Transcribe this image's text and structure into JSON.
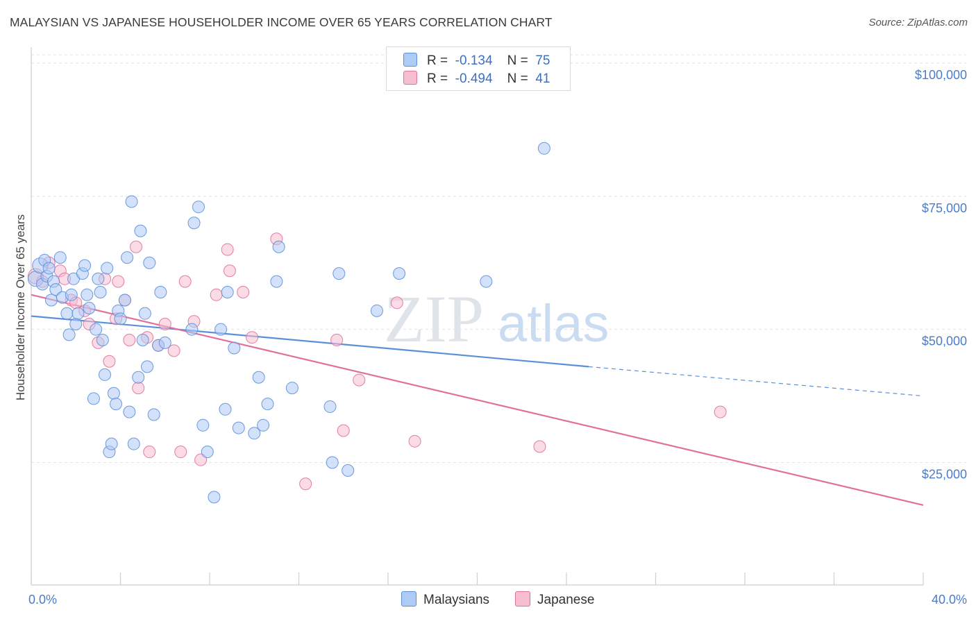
{
  "title": "MALAYSIAN VS JAPANESE HOUSEHOLDER INCOME OVER 65 YEARS CORRELATION CHART",
  "source": "Source: ZipAtlas.com",
  "watermark": {
    "zip": "ZIP",
    "atlas": "atlas"
  },
  "legend": {
    "rows": [
      {
        "r_label": "R =",
        "r_value": "-0.134",
        "n_label": "N =",
        "n_value": "75",
        "color": "#aecbf5"
      },
      {
        "r_label": "R =",
        "r_value": "-0.494",
        "n_label": "N =",
        "n_value": "41",
        "color": "#f7bdd0"
      }
    ]
  },
  "bottom_legend": [
    {
      "label": "Malaysians",
      "color": "#aecbf5"
    },
    {
      "label": "Japanese",
      "color": "#f7bdd0"
    }
  ],
  "chart_data": {
    "type": "scatter",
    "title": "MALAYSIAN VS JAPANESE HOUSEHOLDER INCOME OVER 65 YEARS CORRELATION CHART",
    "xlabel": "",
    "ylabel": "Householder Income Over 65 years",
    "xlim": [
      0,
      40
    ],
    "ylim": [
      2000,
      103000
    ],
    "x_tick_labels": [
      {
        "value": 0,
        "label": "0.0%"
      },
      {
        "value": 40,
        "label": "40.0%"
      }
    ],
    "y_tick_labels": [
      {
        "value": 100000,
        "label": "$100,000"
      },
      {
        "value": 75000,
        "label": "$75,000"
      },
      {
        "value": 50000,
        "label": "$50,000"
      },
      {
        "value": 25000,
        "label": "$25,000"
      }
    ],
    "grid": true,
    "legend_position": "top-center",
    "series": [
      {
        "name": "Malaysians",
        "color": "#5b8fd9",
        "fill": "#aecbf5",
        "trend": {
          "x0": 0,
          "y0": 52500,
          "x1": 25,
          "y1": 43000,
          "dashed_to_x": 40,
          "dashed_to_y": 37500
        },
        "points": [
          [
            0.2,
            59500
          ],
          [
            0.4,
            62000
          ],
          [
            0.5,
            58500
          ],
          [
            0.6,
            63000
          ],
          [
            0.7,
            60000
          ],
          [
            0.8,
            61500
          ],
          [
            0.9,
            55500
          ],
          [
            1.0,
            59000
          ],
          [
            1.1,
            57500
          ],
          [
            1.3,
            63500
          ],
          [
            1.4,
            56000
          ],
          [
            1.6,
            53000
          ],
          [
            1.7,
            49000
          ],
          [
            1.8,
            56500
          ],
          [
            1.9,
            59500
          ],
          [
            2.0,
            51000
          ],
          [
            2.1,
            53000
          ],
          [
            2.3,
            60500
          ],
          [
            2.4,
            62000
          ],
          [
            2.5,
            56500
          ],
          [
            2.6,
            54000
          ],
          [
            2.8,
            37000
          ],
          [
            2.9,
            50000
          ],
          [
            3.0,
            59500
          ],
          [
            3.1,
            57000
          ],
          [
            3.2,
            48000
          ],
          [
            3.3,
            41500
          ],
          [
            3.4,
            61500
          ],
          [
            3.5,
            27000
          ],
          [
            3.6,
            28500
          ],
          [
            3.7,
            38000
          ],
          [
            3.8,
            36000
          ],
          [
            3.9,
            53500
          ],
          [
            4.0,
            52000
          ],
          [
            4.2,
            55500
          ],
          [
            4.3,
            63500
          ],
          [
            4.4,
            34500
          ],
          [
            4.5,
            74000
          ],
          [
            4.6,
            28500
          ],
          [
            4.8,
            41000
          ],
          [
            4.9,
            68500
          ],
          [
            5.0,
            48000
          ],
          [
            5.1,
            53000
          ],
          [
            5.2,
            43000
          ],
          [
            5.3,
            62500
          ],
          [
            5.5,
            34000
          ],
          [
            5.7,
            47000
          ],
          [
            5.8,
            57000
          ],
          [
            6.0,
            47500
          ],
          [
            7.2,
            50000
          ],
          [
            7.3,
            70000
          ],
          [
            7.5,
            73000
          ],
          [
            7.7,
            32000
          ],
          [
            7.9,
            27000
          ],
          [
            8.2,
            18500
          ],
          [
            8.5,
            50000
          ],
          [
            8.7,
            35000
          ],
          [
            8.8,
            57000
          ],
          [
            9.1,
            46500
          ],
          [
            9.3,
            31500
          ],
          [
            10.0,
            30500
          ],
          [
            10.2,
            41000
          ],
          [
            10.4,
            32000
          ],
          [
            10.6,
            36000
          ],
          [
            11.0,
            59000
          ],
          [
            11.1,
            65500
          ],
          [
            11.7,
            39000
          ],
          [
            13.4,
            35500
          ],
          [
            13.5,
            25000
          ],
          [
            13.8,
            60500
          ],
          [
            14.2,
            23500
          ],
          [
            15.5,
            53500
          ],
          [
            16.5,
            60500
          ],
          [
            20.4,
            59000
          ],
          [
            23.0,
            84000
          ]
        ]
      },
      {
        "name": "Japanese",
        "color": "#e0709a",
        "fill": "#f7bdd0",
        "trend": {
          "x0": 0,
          "y0": 56500,
          "x1": 40,
          "y1": 17000
        },
        "points": [
          [
            0.2,
            60000
          ],
          [
            0.5,
            59000
          ],
          [
            0.8,
            62500
          ],
          [
            1.3,
            61000
          ],
          [
            1.5,
            59500
          ],
          [
            1.8,
            55500
          ],
          [
            2.0,
            55000
          ],
          [
            2.4,
            53500
          ],
          [
            2.6,
            51000
          ],
          [
            3.0,
            47500
          ],
          [
            3.3,
            59500
          ],
          [
            3.5,
            44000
          ],
          [
            3.8,
            52000
          ],
          [
            3.9,
            59000
          ],
          [
            4.2,
            55500
          ],
          [
            4.4,
            48000
          ],
          [
            4.7,
            65500
          ],
          [
            4.8,
            39000
          ],
          [
            5.2,
            48500
          ],
          [
            5.3,
            27000
          ],
          [
            5.7,
            47000
          ],
          [
            6.0,
            51000
          ],
          [
            6.4,
            46000
          ],
          [
            6.7,
            27000
          ],
          [
            6.9,
            59000
          ],
          [
            7.3,
            51500
          ],
          [
            7.6,
            25500
          ],
          [
            8.3,
            56500
          ],
          [
            8.8,
            65000
          ],
          [
            8.9,
            61000
          ],
          [
            9.5,
            57000
          ],
          [
            9.9,
            48500
          ],
          [
            11.0,
            67000
          ],
          [
            12.3,
            21000
          ],
          [
            13.7,
            48000
          ],
          [
            14.0,
            31000
          ],
          [
            14.7,
            40500
          ],
          [
            16.4,
            55000
          ],
          [
            17.2,
            29000
          ],
          [
            22.8,
            28000
          ],
          [
            30.9,
            34500
          ]
        ]
      }
    ]
  }
}
